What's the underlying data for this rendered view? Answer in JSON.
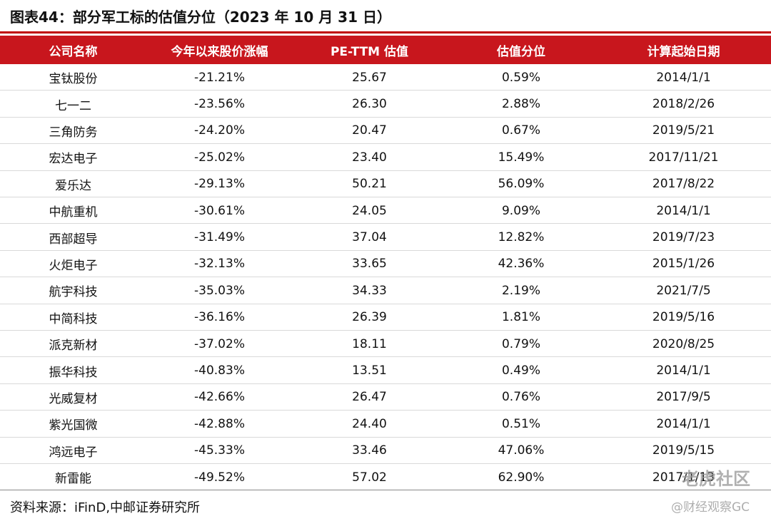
{
  "header": {
    "title": "图表44：部分军工标的估值分位（2023 年 10 月 31 日）"
  },
  "table": {
    "columns": [
      "公司名称",
      "今年以来股价涨幅",
      "PE-TTM 估值",
      "估值分位",
      "计算起始日期"
    ],
    "rows": [
      [
        "宝钛股份",
        "-21.21%",
        "25.67",
        "0.59%",
        "2014/1/1"
      ],
      [
        "七一二",
        "-23.56%",
        "26.30",
        "2.88%",
        "2018/2/26"
      ],
      [
        "三角防务",
        "-24.20%",
        "20.47",
        "0.67%",
        "2019/5/21"
      ],
      [
        "宏达电子",
        "-25.02%",
        "23.40",
        "15.49%",
        "2017/11/21"
      ],
      [
        "爱乐达",
        "-29.13%",
        "50.21",
        "56.09%",
        "2017/8/22"
      ],
      [
        "中航重机",
        "-30.61%",
        "24.05",
        "9.09%",
        "2014/1/1"
      ],
      [
        "西部超导",
        "-31.49%",
        "37.04",
        "12.82%",
        "2019/7/23"
      ],
      [
        "火炬电子",
        "-32.13%",
        "33.65",
        "42.36%",
        "2015/1/26"
      ],
      [
        "航宇科技",
        "-35.03%",
        "34.33",
        "2.19%",
        "2021/7/5"
      ],
      [
        "中简科技",
        "-36.16%",
        "26.39",
        "1.81%",
        "2019/5/16"
      ],
      [
        "派克新材",
        "-37.02%",
        "18.11",
        "0.79%",
        "2020/8/25"
      ],
      [
        "振华科技",
        "-40.83%",
        "13.51",
        "0.49%",
        "2014/1/1"
      ],
      [
        "光威复材",
        "-42.66%",
        "26.47",
        "0.76%",
        "2017/9/5"
      ],
      [
        "紫光国微",
        "-42.88%",
        "24.40",
        "0.51%",
        "2014/1/1"
      ],
      [
        "鸿远电子",
        "-45.33%",
        "33.46",
        "47.06%",
        "2019/5/15"
      ],
      [
        "新雷能",
        "-49.52%",
        "57.02",
        "62.90%",
        "2017/1/13"
      ]
    ]
  },
  "source": "资料来源：iFinD,中邮证券研究所",
  "watermark": [
    "老虎社区",
    "@财经观察GC"
  ]
}
